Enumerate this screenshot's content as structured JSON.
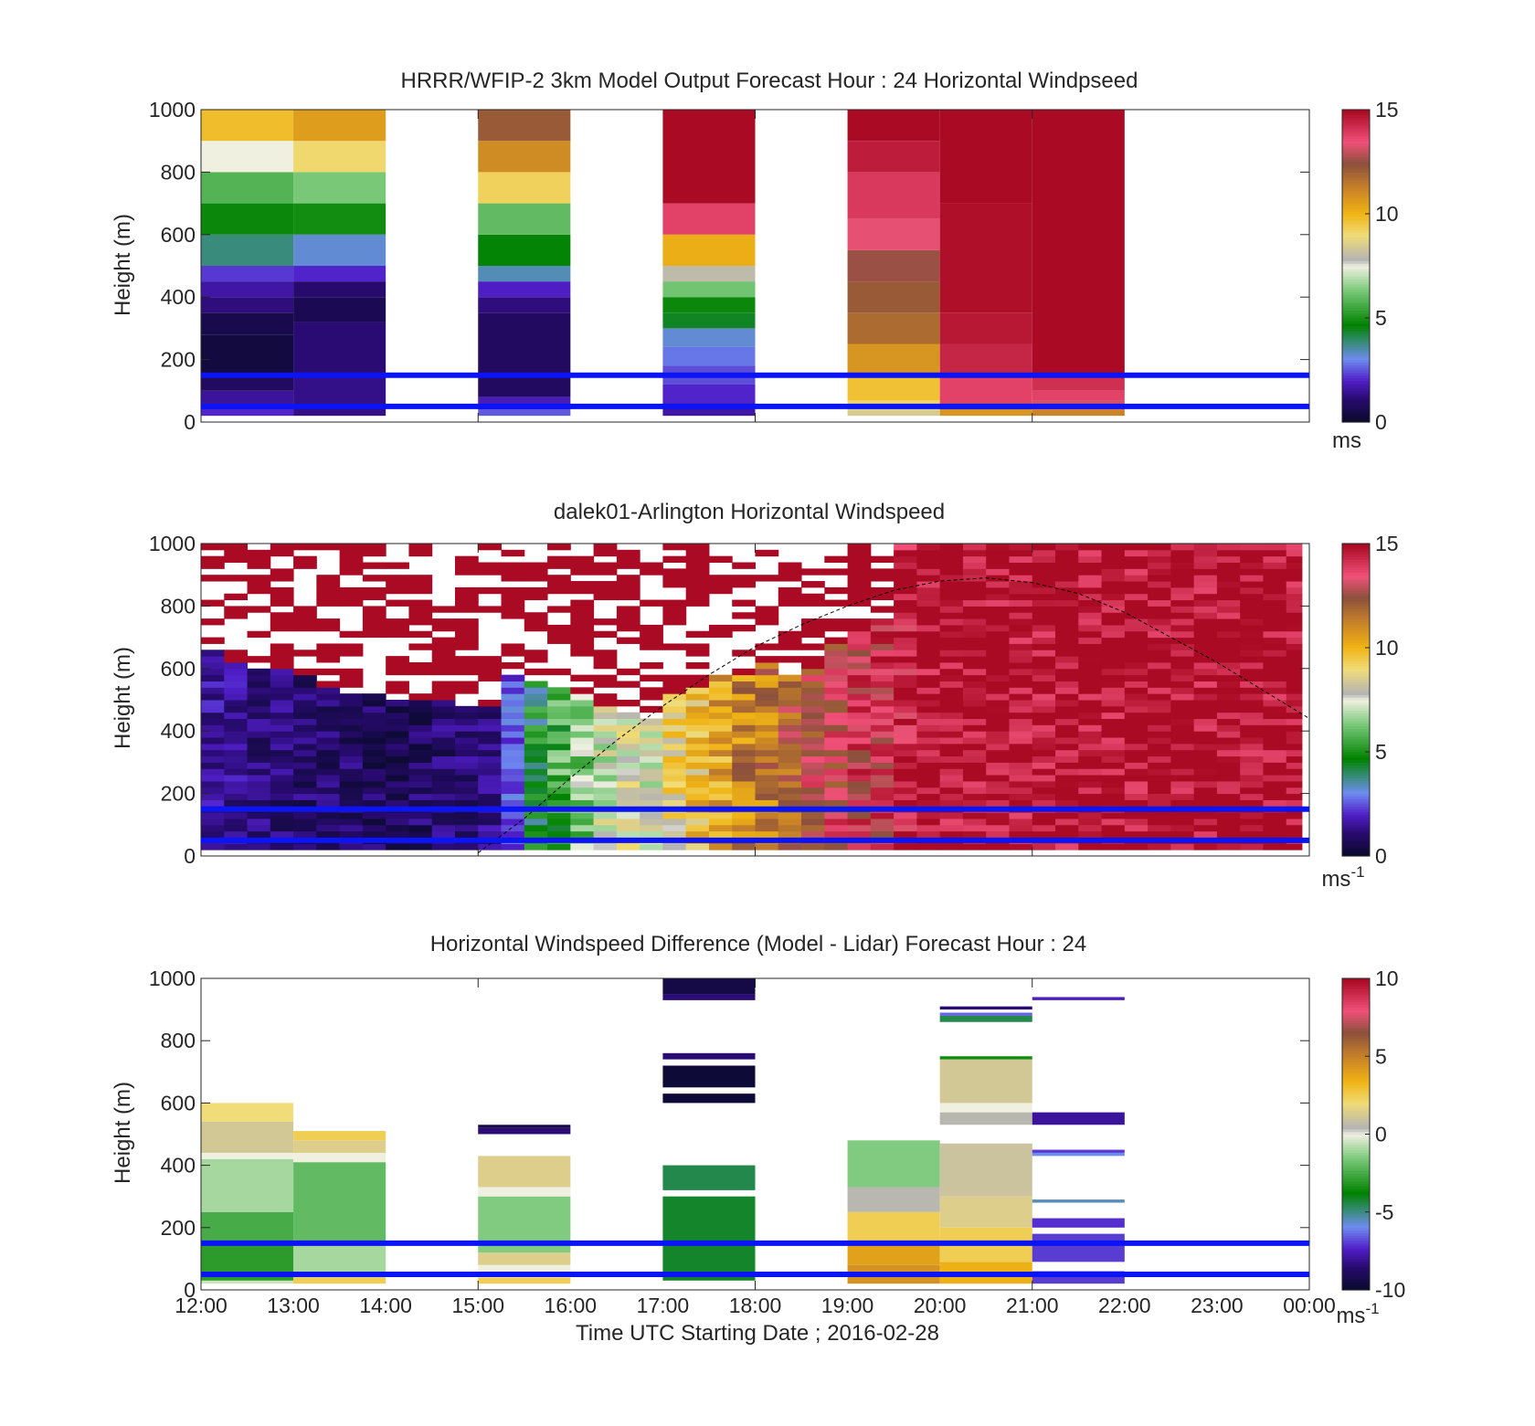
{
  "figure": {
    "xlabel": "Time UTC  Starting Date ; 2016-02-28",
    "x_tick_labels": [
      "12:00",
      "13:00",
      "14:00",
      "15:00",
      "16:00",
      "17:00",
      "18:00",
      "19:00",
      "20:00",
      "21:00",
      "22:00",
      "23:00",
      "00:00"
    ],
    "reference_lines_height_m": [
      150,
      50
    ],
    "reference_line_color": "#0a14f5"
  },
  "chart_data": [
    {
      "type": "heatmap",
      "title": "HRRR/WFIP-2 3km Model Output   Forecast Hour : 24 Horizontal Windpseed",
      "ylabel": "Height (m)",
      "ylim": [
        0,
        1000
      ],
      "y_ticks": [
        0,
        200,
        400,
        600,
        800,
        1000
      ],
      "clim": [
        0,
        15
      ],
      "colorbar_ticks": [
        0,
        5,
        10,
        15
      ],
      "colorbar_label": "ms",
      "colorbar_sup": "",
      "columns": [
        {
          "x": [
            12,
            13
          ],
          "cells": [
            [
              20,
              50,
              2.0
            ],
            [
              50,
              100,
              1.5
            ],
            [
              100,
              150,
              0.8
            ],
            [
              150,
              280,
              0.3
            ],
            [
              280,
              350,
              0.5
            ],
            [
              350,
              400,
              1.2
            ],
            [
              400,
              450,
              1.6
            ],
            [
              450,
              500,
              2.2
            ],
            [
              500,
              600,
              3.8
            ],
            [
              600,
              700,
              4.8
            ],
            [
              700,
              800,
              5.8
            ],
            [
              800,
              900,
              7.5
            ],
            [
              900,
              1000,
              9.8
            ]
          ]
        },
        {
          "x": [
            13,
            14
          ],
          "cells": [
            [
              20,
              150,
              1.3
            ],
            [
              150,
              320,
              1.1
            ],
            [
              320,
              400,
              0.6
            ],
            [
              400,
              450,
              1.0
            ],
            [
              450,
              500,
              2.0
            ],
            [
              500,
              600,
              3.2
            ],
            [
              600,
              700,
              4.9
            ],
            [
              700,
              800,
              6.3
            ],
            [
              800,
              900,
              9.1
            ],
            [
              900,
              1000,
              10.6
            ]
          ]
        },
        {
          "x": [
            15,
            16
          ],
          "cells": [
            [
              20,
              40,
              2.5
            ],
            [
              40,
              80,
              1.8
            ],
            [
              80,
              350,
              0.8
            ],
            [
              350,
              400,
              1.2
            ],
            [
              400,
              450,
              1.9
            ],
            [
              450,
              500,
              3.4
            ],
            [
              500,
              600,
              4.7
            ],
            [
              600,
              700,
              6.0
            ],
            [
              700,
              800,
              9.3
            ],
            [
              800,
              900,
              11.0
            ],
            [
              900,
              1000,
              12.2
            ]
          ]
        },
        {
          "x": [
            17,
            18
          ],
          "cells": [
            [
              20,
              60,
              1.6
            ],
            [
              60,
              120,
              2.0
            ],
            [
              120,
              180,
              2.4
            ],
            [
              180,
              240,
              2.8
            ],
            [
              240,
              300,
              3.2
            ],
            [
              300,
              350,
              4.4
            ],
            [
              350,
              400,
              4.8
            ],
            [
              400,
              450,
              6.2
            ],
            [
              450,
              500,
              8.0
            ],
            [
              500,
              600,
              10.2
            ],
            [
              600,
              700,
              13.8
            ],
            [
              700,
              1000,
              15
            ]
          ]
        },
        {
          "x": [
            19,
            20
          ],
          "cells": [
            [
              20,
              40,
              8.5
            ],
            [
              40,
              70,
              9.2
            ],
            [
              70,
              150,
              9.7
            ],
            [
              150,
              250,
              10.8
            ],
            [
              250,
              350,
              11.8
            ],
            [
              350,
              450,
              12.2
            ],
            [
              450,
              550,
              12.6
            ],
            [
              550,
              650,
              13.4
            ],
            [
              650,
              800,
              14.0
            ],
            [
              800,
              900,
              14.6
            ],
            [
              900,
              1000,
              15
            ]
          ]
        },
        {
          "x": [
            20,
            21
          ],
          "cells": [
            [
              20,
              40,
              10.8
            ],
            [
              40,
              60,
              12.2
            ],
            [
              60,
              150,
              13.8
            ],
            [
              150,
              250,
              14.4
            ],
            [
              250,
              350,
              14.7
            ],
            [
              350,
              700,
              14.9
            ],
            [
              700,
              1000,
              15
            ]
          ]
        },
        {
          "x": [
            21,
            22
          ],
          "cells": [
            [
              20,
              40,
              11.2
            ],
            [
              40,
              70,
              13.2
            ],
            [
              70,
              100,
              13.8
            ],
            [
              100,
              150,
              14.2
            ],
            [
              150,
              1000,
              15
            ]
          ]
        }
      ]
    },
    {
      "type": "heatmap",
      "title": "dalek01-Arlington  Horizontal Windspeed",
      "ylabel": "Height (m)",
      "ylim": [
        0,
        1000
      ],
      "y_ticks": [
        0,
        200,
        400,
        600,
        800,
        1000
      ],
      "clim": [
        0,
        15
      ],
      "colorbar_ticks": [
        0,
        5,
        10,
        15
      ],
      "colorbar_label": "ms",
      "colorbar_sup": "-1",
      "profile_range_hours": [
        12.0,
        23.92
      ],
      "profile_step_hours": 0.25,
      "profile_speeds_mps": [
        1.5,
        1.4,
        1.2,
        1.1,
        1.0,
        0.9,
        0.9,
        0.8,
        0.8,
        0.9,
        1.0,
        1.1,
        1.3,
        2.5,
        4.5,
        5.5,
        6.5,
        7.5,
        8.0,
        7.5,
        8.8,
        9.6,
        10.5,
        11.2,
        11.5,
        12.0,
        12.8,
        13.2,
        13.6,
        13.8,
        14.5,
        15,
        15,
        15,
        15,
        15,
        15,
        15,
        15,
        15,
        15,
        15,
        15,
        15,
        15,
        15,
        15,
        15
      ],
      "profile_tops_m": [
        650,
        600,
        590,
        580,
        560,
        520,
        500,
        500,
        490,
        490,
        480,
        470,
        470,
        560,
        540,
        520,
        500,
        460,
        450,
        420,
        500,
        520,
        560,
        570,
        600,
        560,
        580,
        660,
        700,
        740,
        1000,
        1000,
        1000,
        1000,
        1000,
        1000,
        1000,
        1000,
        1000,
        1000,
        1000,
        1000,
        1000,
        1000,
        1000,
        1000,
        1000,
        1000
      ],
      "curve_x_hours": [
        15.0,
        15.5,
        16.0,
        16.5,
        17.0,
        17.5,
        18.0,
        18.5,
        19.0,
        19.5,
        20.0,
        20.5,
        21.0,
        21.5,
        22.0,
        22.5,
        23.0,
        23.5,
        24.0
      ],
      "curve_heights_m": [
        10,
        120,
        250,
        370,
        480,
        580,
        670,
        740,
        800,
        850,
        880,
        890,
        875,
        840,
        780,
        700,
        620,
        530,
        440
      ]
    },
    {
      "type": "heatmap",
      "title": "Horizontal Windspeed Difference (Model - Lidar) Forecast Hour : 24",
      "ylabel": "Height (m)",
      "ylim": [
        0,
        1000
      ],
      "y_ticks": [
        0,
        200,
        400,
        600,
        800,
        1000
      ],
      "clim": [
        -10,
        10
      ],
      "colorbar_ticks": [
        -10,
        -5,
        0,
        5,
        10
      ],
      "colorbar_label": "ms",
      "colorbar_sup": "-1",
      "columns": [
        {
          "x": [
            12,
            13
          ],
          "cells": [
            [
              20,
              30,
              -0.5
            ],
            [
              30,
              150,
              -3.0
            ],
            [
              150,
              250,
              -2.5
            ],
            [
              250,
              420,
              -1.0
            ],
            [
              420,
              440,
              -0.0
            ],
            [
              440,
              540,
              1.2
            ],
            [
              540,
              600,
              2.0
            ]
          ]
        },
        {
          "x": [
            13,
            14
          ],
          "cells": [
            [
              20,
              40,
              2.5
            ],
            [
              40,
              150,
              -1.0
            ],
            [
              150,
              410,
              -2.0
            ],
            [
              410,
              440,
              -0.0
            ],
            [
              440,
              480,
              1.5
            ],
            [
              480,
              510,
              2.5
            ]
          ]
        },
        {
          "x": [
            15,
            16
          ],
          "cells": [
            [
              20,
              40,
              2.5
            ],
            [
              40,
              80,
              0.0
            ],
            [
              80,
              120,
              1.5
            ],
            [
              120,
              300,
              -1.5
            ],
            [
              300,
              330,
              -0.0
            ],
            [
              330,
              430,
              1.5
            ],
            [
              500,
              520,
              -8.5
            ],
            [
              520,
              530,
              -9.5
            ]
          ]
        },
        {
          "x": [
            17,
            18
          ],
          "cells": [
            [
              30,
              300,
              -4.2
            ],
            [
              320,
              400,
              -4.5
            ],
            [
              600,
              630,
              -9.8
            ],
            [
              650,
              720,
              -9.8
            ],
            [
              740,
              760,
              -8.5
            ],
            [
              930,
              950,
              -8.5
            ],
            [
              950,
              1000,
              -9.5
            ]
          ]
        },
        {
          "x": [
            19,
            20
          ],
          "cells": [
            [
              20,
              80,
              4.5
            ],
            [
              80,
              150,
              4.0
            ],
            [
              150,
              250,
              2.5
            ],
            [
              250,
              330,
              0.5
            ],
            [
              330,
              480,
              -1.5
            ]
          ]
        },
        {
          "x": [
            20,
            21
          ],
          "cells": [
            [
              20,
              90,
              3.5
            ],
            [
              90,
              200,
              2.5
            ],
            [
              200,
              300,
              1.5
            ],
            [
              300,
              470,
              1.0
            ],
            [
              530,
              570,
              0.5
            ],
            [
              570,
              600,
              0.0
            ],
            [
              600,
              740,
              1.2
            ],
            [
              740,
              750,
              -3.5
            ],
            [
              860,
              880,
              -4.5
            ],
            [
              880,
              890,
              -6.5
            ],
            [
              900,
              910,
              -8.5
            ]
          ]
        },
        {
          "x": [
            21,
            22
          ],
          "cells": [
            [
              20,
              60,
              -7.0
            ],
            [
              90,
              180,
              -7.0
            ],
            [
              200,
              230,
              -7.2
            ],
            [
              280,
              290,
              -5.5
            ],
            [
              430,
              440,
              -6.0
            ],
            [
              440,
              450,
              -7.0
            ],
            [
              530,
              570,
              -8.0
            ],
            [
              930,
              940,
              -7.5
            ]
          ]
        }
      ]
    }
  ]
}
